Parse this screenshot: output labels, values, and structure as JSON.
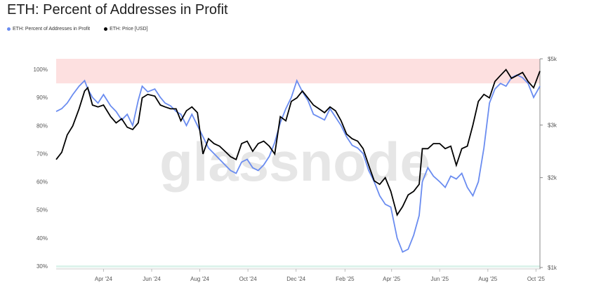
{
  "title": "ETH: Percent of Addresses in Profit",
  "legend": [
    {
      "label": "ETH: Percent of Addresses in Profit",
      "color": "#6a8cf0"
    },
    {
      "label": "ETH: Price [USD]",
      "color": "#000000"
    }
  ],
  "watermark": "glassnode",
  "colors": {
    "profit_line": "#6a8cf0",
    "price_line": "#000000",
    "upper_band": "#fde0e0",
    "lower_band": "#ddf3ec"
  },
  "chart_data": {
    "type": "line",
    "grid": false,
    "legend_position": "top-left",
    "x_tick_labels": [
      "Apr '24",
      "Jun '24",
      "Aug '24",
      "Oct '24",
      "Dec '24",
      "Feb '25",
      "Apr '25",
      "Jun '25",
      "Aug '25",
      "Oct '25"
    ],
    "x_tick_dates": [
      "2024-04-01",
      "2024-06-01",
      "2024-08-01",
      "2024-10-01",
      "2024-12-01",
      "2025-02-01",
      "2025-04-01",
      "2025-06-01",
      "2025-08-01",
      "2025-10-01"
    ],
    "x_range": [
      "2024-02-01",
      "2025-10-06"
    ],
    "y_left": {
      "tick_labels": [
        "30%",
        "40%",
        "50%",
        "60%",
        "70%",
        "80%",
        "90%",
        "100%"
      ],
      "range": [
        30,
        100
      ]
    },
    "y_right": {
      "tick_labels": [
        "$1k",
        "$2k",
        "$3k",
        "$5k"
      ],
      "tick_values": [
        1000,
        2000,
        3000,
        5000
      ],
      "scale": "log"
    },
    "bands": [
      {
        "axis": "left",
        "from": 95,
        "to": 100,
        "color": "#fde0e0"
      },
      {
        "axis": "left",
        "from": 29.5,
        "to": 30,
        "color": "#ddf3ec"
      }
    ],
    "series": [
      {
        "name": "ETH: Percent of Addresses in Profit",
        "axis": "left",
        "x": [
          "2024-02-01",
          "2024-02-08",
          "2024-02-15",
          "2024-02-22",
          "2024-03-01",
          "2024-03-08",
          "2024-03-12",
          "2024-03-18",
          "2024-03-25",
          "2024-04-01",
          "2024-04-10",
          "2024-04-17",
          "2024-04-24",
          "2024-05-01",
          "2024-05-08",
          "2024-05-15",
          "2024-05-20",
          "2024-05-27",
          "2024-06-05",
          "2024-06-12",
          "2024-06-18",
          "2024-06-25",
          "2024-07-02",
          "2024-07-08",
          "2024-07-15",
          "2024-07-22",
          "2024-07-29",
          "2024-08-05",
          "2024-08-12",
          "2024-08-19",
          "2024-08-26",
          "2024-09-02",
          "2024-09-09",
          "2024-09-16",
          "2024-09-23",
          "2024-09-30",
          "2024-10-07",
          "2024-10-14",
          "2024-10-21",
          "2024-10-28",
          "2024-11-04",
          "2024-11-11",
          "2024-11-18",
          "2024-11-25",
          "2024-12-02",
          "2024-12-09",
          "2024-12-16",
          "2024-12-23",
          "2024-12-30",
          "2025-01-06",
          "2025-01-13",
          "2025-01-20",
          "2025-01-27",
          "2025-02-03",
          "2025-02-10",
          "2025-02-17",
          "2025-02-24",
          "2025-03-03",
          "2025-03-10",
          "2025-03-17",
          "2025-03-24",
          "2025-03-31",
          "2025-04-08",
          "2025-04-15",
          "2025-04-22",
          "2025-04-29",
          "2025-05-06",
          "2025-05-10",
          "2025-05-17",
          "2025-05-24",
          "2025-06-01",
          "2025-06-08",
          "2025-06-15",
          "2025-06-22",
          "2025-06-29",
          "2025-07-06",
          "2025-07-13",
          "2025-07-20",
          "2025-07-27",
          "2025-08-03",
          "2025-08-10",
          "2025-08-17",
          "2025-08-24",
          "2025-08-31",
          "2025-09-07",
          "2025-09-14",
          "2025-09-21",
          "2025-09-28",
          "2025-10-06"
        ],
        "values": [
          85,
          86,
          88,
          91,
          94,
          96,
          93,
          90,
          88,
          91,
          87,
          85,
          82,
          84,
          80,
          89,
          94,
          92,
          93,
          90,
          88,
          87,
          85,
          84,
          80,
          84,
          80,
          76,
          72,
          70,
          68,
          66,
          64,
          63,
          67,
          68,
          65,
          64,
          66,
          69,
          74,
          81,
          86,
          90,
          96,
          92,
          89,
          84,
          83,
          82,
          86,
          83,
          80,
          76,
          73,
          72,
          70,
          64,
          60,
          55,
          52,
          51,
          40,
          35,
          36,
          41,
          48,
          60,
          65,
          62,
          60,
          58,
          62,
          61,
          63,
          58,
          55,
          60,
          72,
          88,
          93,
          95,
          94,
          97,
          98,
          97,
          95,
          90,
          94
        ]
      },
      {
        "name": "ETH: Price [USD]",
        "axis": "right",
        "x": [
          "2024-02-01",
          "2024-02-08",
          "2024-02-15",
          "2024-02-22",
          "2024-03-01",
          "2024-03-08",
          "2024-03-12",
          "2024-03-18",
          "2024-03-25",
          "2024-04-01",
          "2024-04-10",
          "2024-04-17",
          "2024-04-24",
          "2024-05-01",
          "2024-05-08",
          "2024-05-15",
          "2024-05-20",
          "2024-05-27",
          "2024-06-05",
          "2024-06-12",
          "2024-06-18",
          "2024-06-25",
          "2024-07-02",
          "2024-07-08",
          "2024-07-15",
          "2024-07-22",
          "2024-07-29",
          "2024-08-05",
          "2024-08-12",
          "2024-08-19",
          "2024-08-26",
          "2024-09-02",
          "2024-09-09",
          "2024-09-16",
          "2024-09-23",
          "2024-09-30",
          "2024-10-07",
          "2024-10-14",
          "2024-10-21",
          "2024-10-28",
          "2024-11-04",
          "2024-11-11",
          "2024-11-18",
          "2024-11-25",
          "2024-12-02",
          "2024-12-09",
          "2024-12-16",
          "2024-12-23",
          "2024-12-30",
          "2025-01-06",
          "2025-01-13",
          "2025-01-20",
          "2025-01-27",
          "2025-02-03",
          "2025-02-10",
          "2025-02-17",
          "2025-02-24",
          "2025-03-03",
          "2025-03-10",
          "2025-03-17",
          "2025-03-24",
          "2025-03-31",
          "2025-04-08",
          "2025-04-15",
          "2025-04-22",
          "2025-04-29",
          "2025-05-06",
          "2025-05-10",
          "2025-05-17",
          "2025-05-24",
          "2025-06-01",
          "2025-06-08",
          "2025-06-15",
          "2025-06-22",
          "2025-06-29",
          "2025-07-06",
          "2025-07-13",
          "2025-07-20",
          "2025-07-27",
          "2025-08-03",
          "2025-08-10",
          "2025-08-17",
          "2025-08-24",
          "2025-08-31",
          "2025-09-07",
          "2025-09-14",
          "2025-09-21",
          "2025-09-28",
          "2025-10-06"
        ],
        "values": [
          2300,
          2430,
          2780,
          2980,
          3400,
          3900,
          4000,
          3500,
          3450,
          3500,
          3200,
          3050,
          3150,
          2950,
          2900,
          3050,
          3700,
          3800,
          3750,
          3500,
          3450,
          3400,
          3400,
          3100,
          3350,
          3450,
          3300,
          2400,
          2700,
          2600,
          2550,
          2450,
          2350,
          2300,
          2600,
          2650,
          2450,
          2600,
          2650,
          2550,
          2400,
          3200,
          3100,
          3600,
          3700,
          3900,
          3700,
          3500,
          3400,
          3300,
          3450,
          3350,
          3100,
          2800,
          2700,
          2650,
          2500,
          2200,
          1950,
          1900,
          2000,
          1800,
          1500,
          1600,
          1750,
          1800,
          1900,
          2500,
          2500,
          2600,
          2600,
          2500,
          2550,
          2200,
          2500,
          2550,
          3000,
          3600,
          3800,
          3700,
          4200,
          4400,
          4600,
          4300,
          4400,
          4500,
          4200,
          4000,
          4550
        ]
      }
    ]
  }
}
